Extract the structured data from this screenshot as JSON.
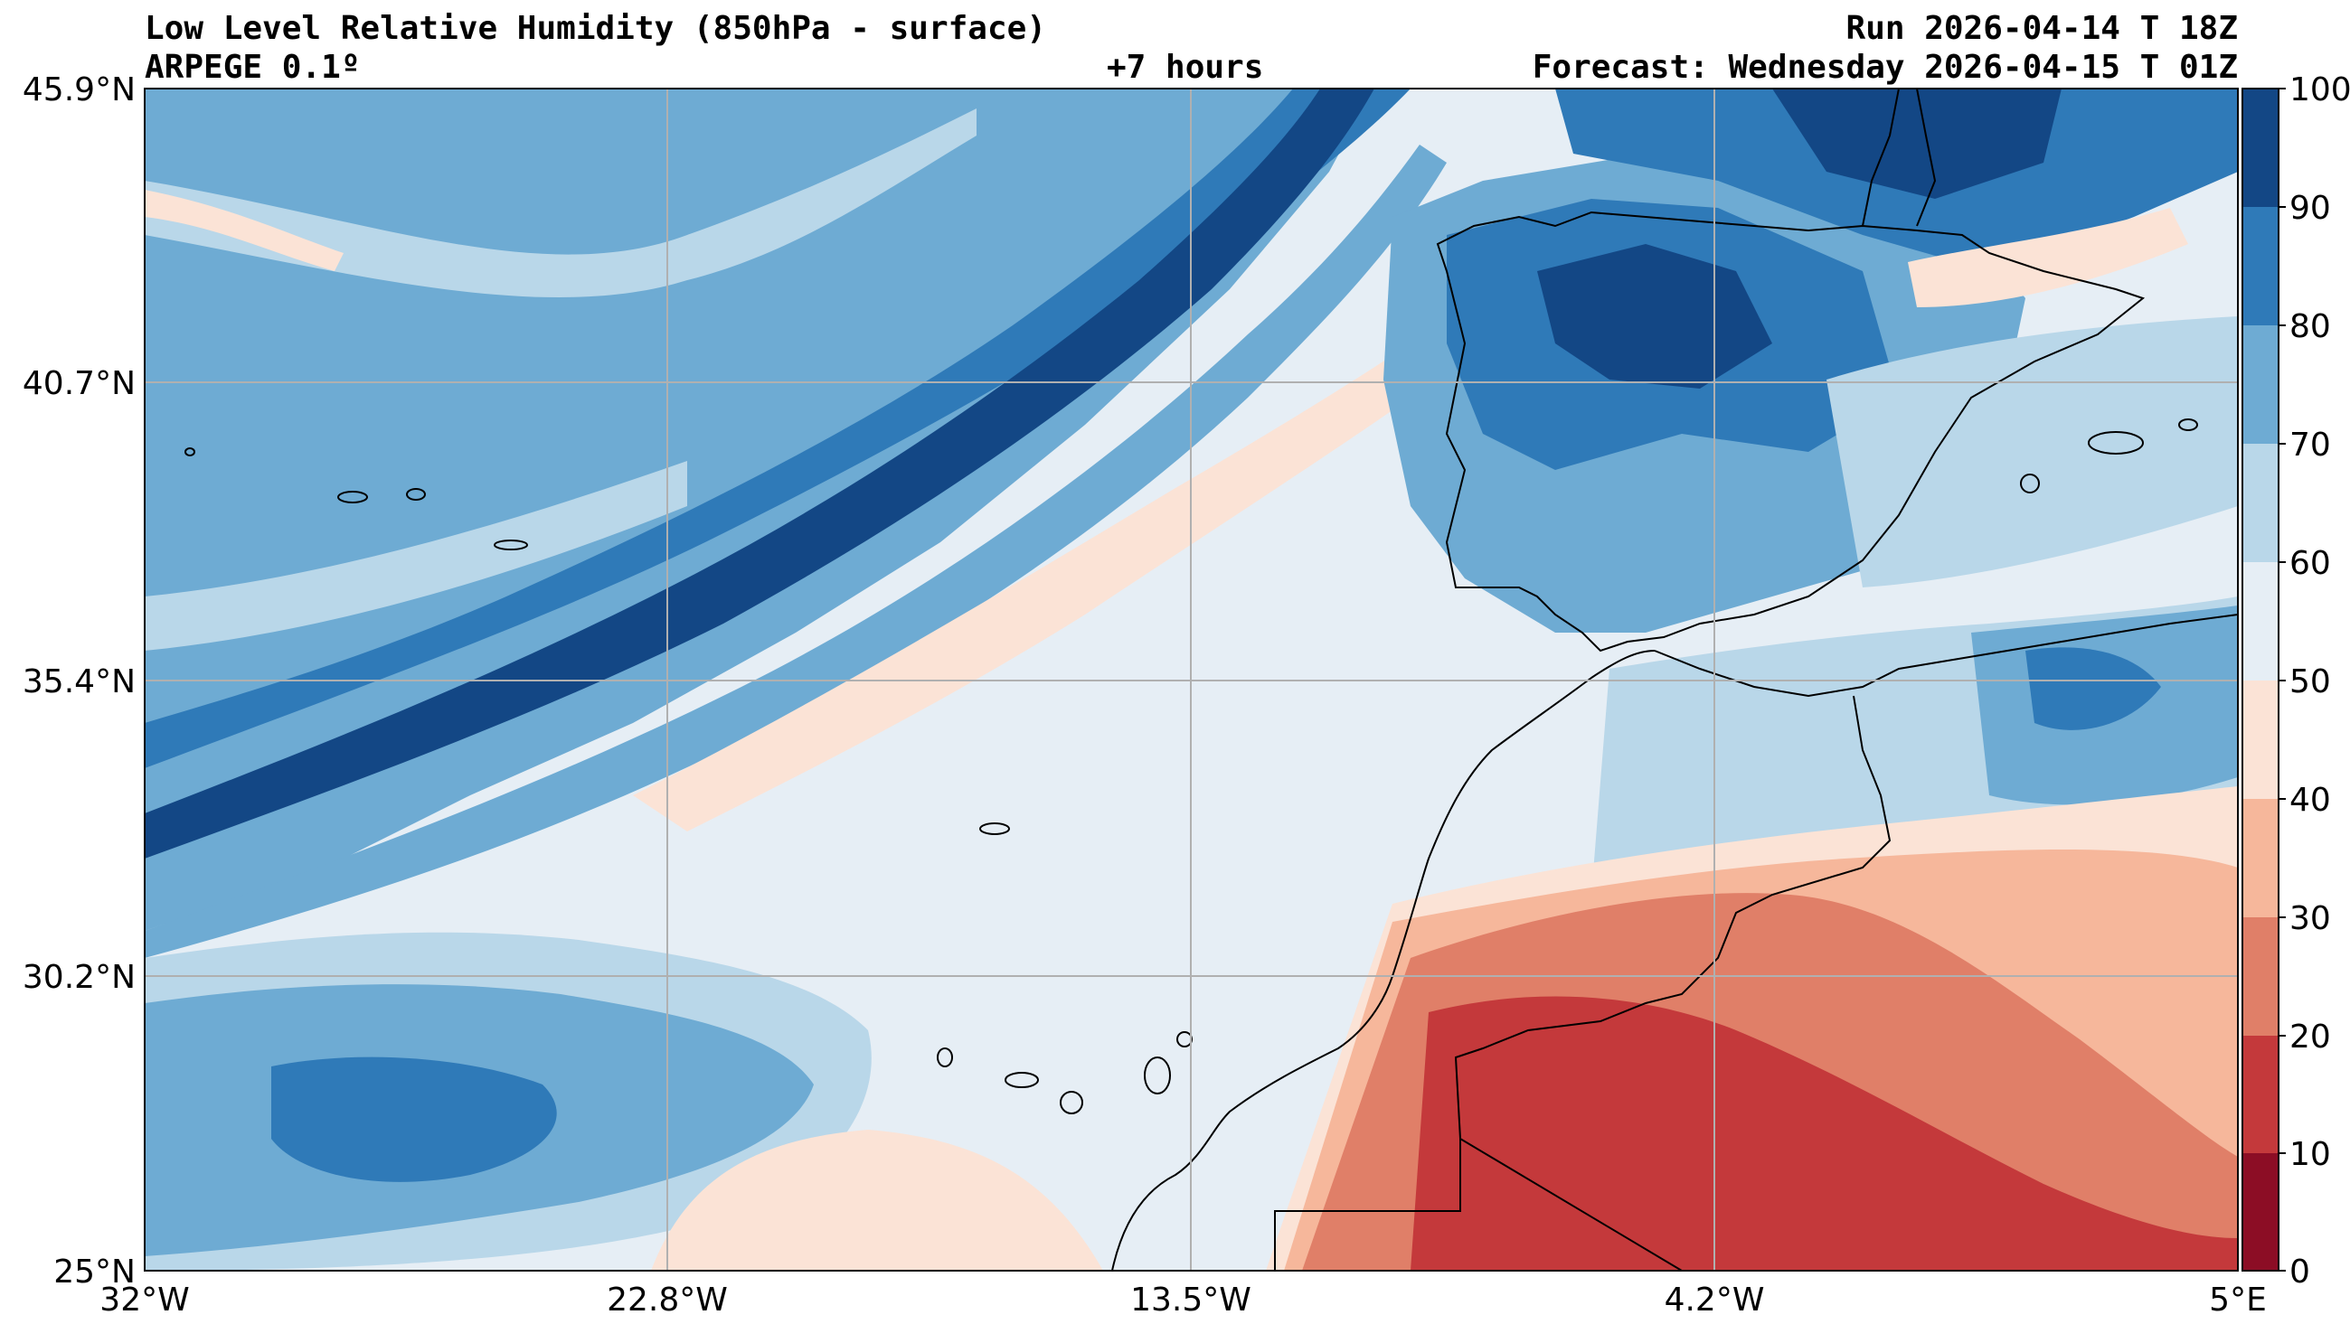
{
  "header": {
    "title": "Low Level Relative Humidity (850hPa - surface)",
    "model": "ARPEGE 0.1º",
    "lead_time": "+7 hours",
    "run": "Run 2026-04-14 T 18Z",
    "forecast": "Forecast: Wednesday 2026-04-15 T 01Z"
  },
  "map": {
    "lat_labels": [
      "45.9°N",
      "40.7°N",
      "35.4°N",
      "30.2°N",
      "25°N"
    ],
    "lon_labels": [
      "32°W",
      "22.8°W",
      "13.5°W",
      "4.2°W",
      "5°E"
    ],
    "grid": true
  },
  "colorbar": {
    "ticks": [
      "100",
      "90",
      "80",
      "70",
      "60",
      "50",
      "40",
      "30",
      "20",
      "10",
      "0"
    ],
    "colors": [
      "#67001f",
      "#b2182b",
      "#d6604d",
      "#f4a582",
      "#fddbc7",
      "#f7f7f7",
      "#d1e5f0",
      "#92c5de",
      "#4393c3",
      "#2166ac",
      "#053061"
    ],
    "level_colors": {
      "0-10": "#8c0d25",
      "10-20": "#c4393b",
      "20-30": "#e07f68",
      "30-40": "#f6b79b",
      "40-50": "#fbe3d6",
      "50-60": "#e6eef5",
      "60-70": "#b9d7e9",
      "70-80": "#6eabd3",
      "80-90": "#2f7ab8",
      "90-100": "#134785"
    }
  }
}
